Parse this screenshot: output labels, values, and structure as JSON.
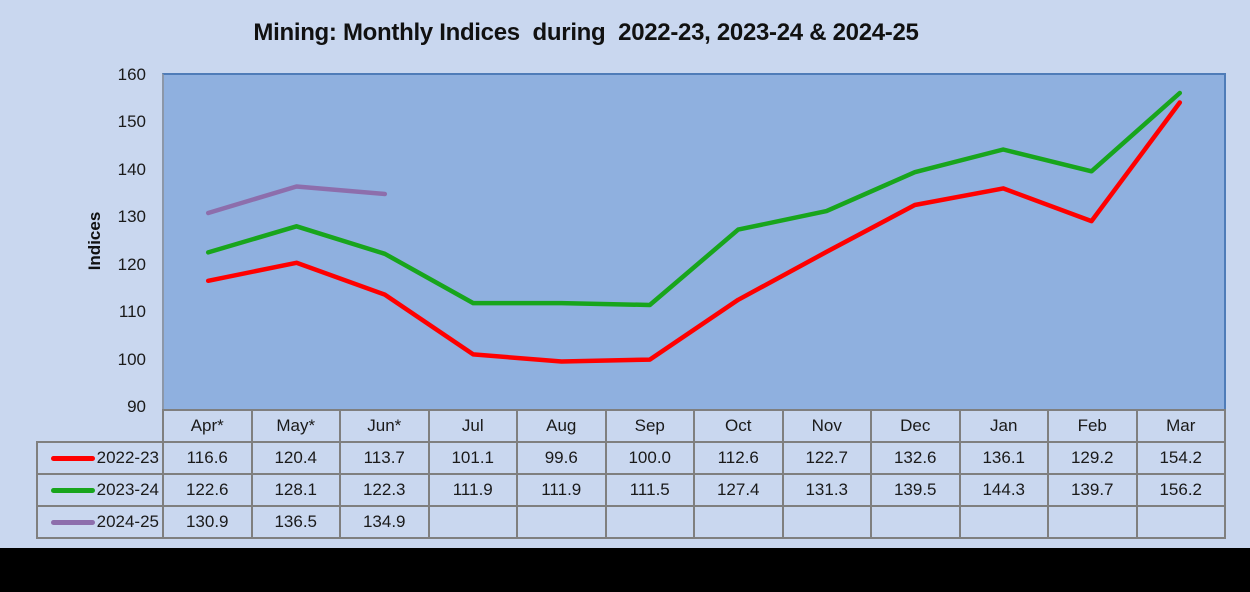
{
  "title": "Mining: Monthly Indices  during  2022-23, 2023-24 & 2024-25",
  "y_axis": {
    "label": "Indices",
    "ticks": [
      160,
      150,
      140,
      130,
      120,
      110,
      100,
      90
    ]
  },
  "chart_data": {
    "type": "line",
    "title": "Mining: Monthly Indices  during  2022-23, 2023-24 & 2024-25",
    "xlabel": "",
    "ylabel": "Indices",
    "ylim": [
      90,
      160
    ],
    "ytick_step": 10,
    "grid": false,
    "legend_position": "table-left",
    "categories": [
      "Apr*",
      "May*",
      "Jun*",
      "Jul",
      "Aug",
      "Sep",
      "Oct",
      "Nov",
      "Dec",
      "Jan",
      "Feb",
      "Mar"
    ],
    "series": [
      {
        "name": "2022-23",
        "color": "#FF0000",
        "values": [
          116.6,
          120.4,
          113.7,
          101.1,
          99.6,
          100.0,
          112.6,
          122.7,
          132.6,
          136.1,
          129.2,
          154.2
        ]
      },
      {
        "name": "2023-24",
        "color": "#18A51C",
        "values": [
          122.6,
          128.1,
          122.3,
          111.9,
          111.9,
          111.5,
          127.4,
          131.3,
          139.5,
          144.3,
          139.7,
          156.2
        ]
      },
      {
        "name": "2024-25",
        "color": "#8D6EAC",
        "values": [
          130.9,
          136.5,
          134.9,
          null,
          null,
          null,
          null,
          null,
          null,
          null,
          null,
          null
        ]
      }
    ]
  },
  "colors": {
    "outer_background": "#C9D7EF",
    "plot_background": "#8FB0DF",
    "plot_border": "#4F7CB8",
    "table_border": "#7F7F7F",
    "bottom_bar": "#000000"
  }
}
